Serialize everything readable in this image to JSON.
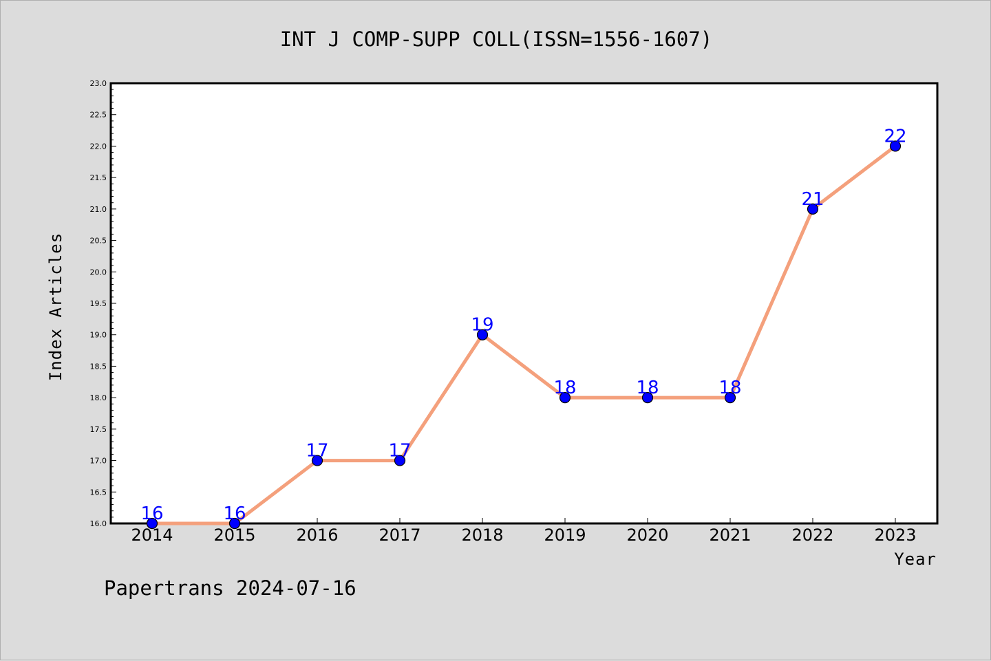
{
  "chart_data": {
    "type": "line",
    "title": "INT J COMP-SUPP COLL(ISSN=1556-1607)",
    "xlabel": "Year",
    "ylabel": "Index Articles",
    "categories": [
      "2014",
      "2015",
      "2016",
      "2017",
      "2018",
      "2019",
      "2020",
      "2021",
      "2022",
      "2023"
    ],
    "series": [
      {
        "values": [
          16,
          16,
          17,
          17,
          19,
          18,
          18,
          18,
          21,
          22
        ]
      }
    ],
    "data_labels": [
      "16",
      "16",
      "17",
      "17",
      "19",
      "18",
      "18",
      "18",
      "21",
      "22"
    ],
    "ylim": [
      16.0,
      23.0
    ],
    "yticks": [
      "16.0",
      "16.5",
      "17.0",
      "17.5",
      "18.0",
      "18.5",
      "19.0",
      "19.5",
      "20.0",
      "20.5",
      "21.0",
      "21.5",
      "22.0",
      "22.5",
      "23.0"
    ],
    "grid": false,
    "line_color": "#f4a07c",
    "marker_color": "#0000ff",
    "label_color": "#0000ff",
    "footer": "Papertrans 2024-07-16"
  }
}
